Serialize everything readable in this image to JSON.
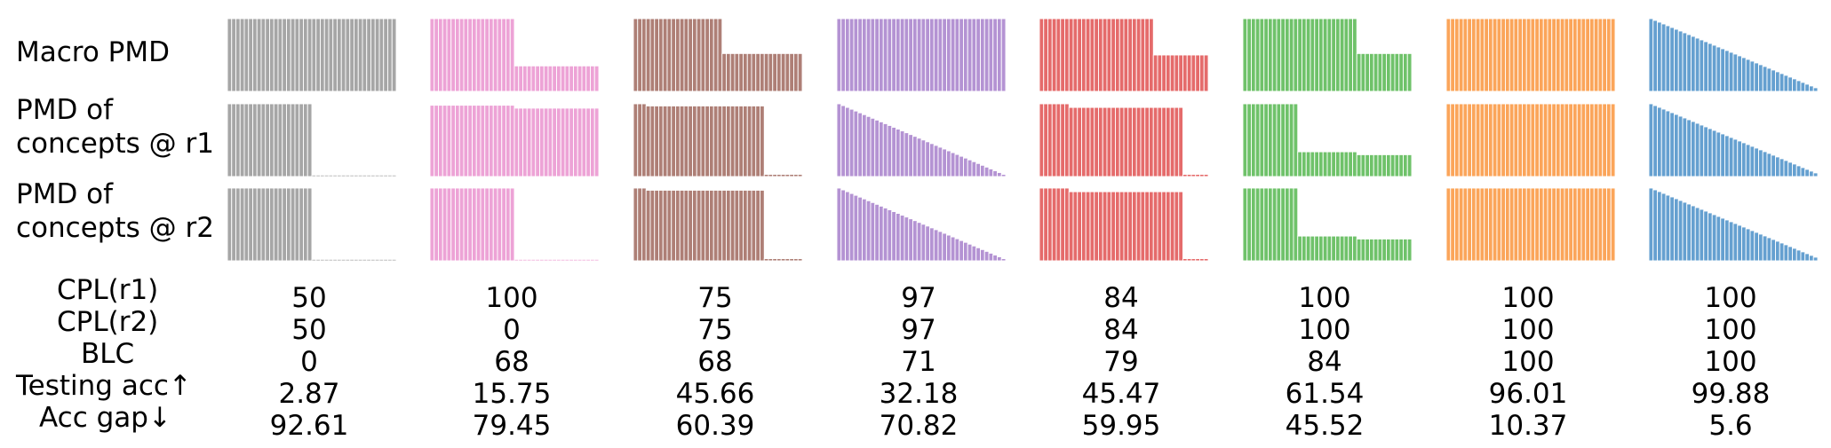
{
  "row_labels": {
    "macro": "Macro PMD",
    "r1": "PMD of\nconcepts @ r1",
    "r2": "PMD of\nconcepts @ r2"
  },
  "metric_labels": [
    "CPL(r1)",
    "CPL(r2)",
    "BLC",
    "Testing acc↑",
    "Acc gap↓"
  ],
  "chart_data": {
    "type": "bar",
    "bars_per_panel": 40,
    "rows": [
      "Macro PMD",
      "PMD of concepts @ r1",
      "PMD of concepts @ r2"
    ],
    "columns": [
      {
        "color": "#a6a6a6",
        "macro": {
          "shape": "flat",
          "level": 1.0
        },
        "r1": {
          "shape": "step",
          "k": 20,
          "high": 1.0,
          "low": 0.02
        },
        "r2": {
          "shape": "step",
          "k": 20,
          "high": 1.0,
          "low": 0.02
        },
        "metrics": [
          "50",
          "50",
          "0",
          "2.87",
          "92.61"
        ]
      },
      {
        "color": "#eda3d6",
        "macro": {
          "shape": "step",
          "k": 20,
          "high": 1.0,
          "low": 0.35
        },
        "r1": {
          "shape": "step",
          "k": 20,
          "high": 0.98,
          "low": 0.94
        },
        "r2": {
          "shape": "step",
          "k": 20,
          "high": 1.0,
          "low": 0.02
        },
        "metrics": [
          "100",
          "0",
          "68",
          "15.75",
          "79.45"
        ]
      },
      {
        "color": "#ae7f76",
        "macro": {
          "shape": "step",
          "k": 21,
          "high": 1.0,
          "low": 0.52
        },
        "r1": {
          "shape": "step",
          "k": 31,
          "high": 0.97,
          "low": 0.03,
          "first": 3,
          "first_high": 1.0
        },
        "r2": {
          "shape": "step",
          "k": 31,
          "high": 0.97,
          "low": 0.03,
          "first": 3,
          "first_high": 1.0
        },
        "metrics": [
          "75",
          "75",
          "68",
          "45.66",
          "60.39"
        ]
      },
      {
        "color": "#b493d3",
        "macro": {
          "shape": "flat",
          "level": 1.0
        },
        "r1": {
          "shape": "linear",
          "start": 1.0,
          "end": 0.03
        },
        "r2": {
          "shape": "linear",
          "start": 1.0,
          "end": 0.03
        },
        "metrics": [
          "97",
          "97",
          "71",
          "32.18",
          "70.82"
        ]
      },
      {
        "color": "#e56b6b",
        "macro": {
          "shape": "step",
          "k": 27,
          "high": 1.0,
          "low": 0.5
        },
        "r1": {
          "shape": "step",
          "k": 34,
          "high": 0.95,
          "low": 0.03,
          "first": 7,
          "first_high": 1.0
        },
        "r2": {
          "shape": "step",
          "k": 34,
          "high": 0.95,
          "low": 0.03,
          "first": 7,
          "first_high": 1.0
        },
        "metrics": [
          "84",
          "84",
          "79",
          "45.47",
          "59.95"
        ]
      },
      {
        "color": "#6fc26a",
        "macro": {
          "shape": "step",
          "k": 27,
          "high": 1.0,
          "low": 0.52
        },
        "r1": {
          "shape": "steps",
          "levels": [
            [
              13,
              1.0
            ],
            [
              14,
              0.34
            ],
            [
              13,
              0.3
            ]
          ]
        },
        "r2": {
          "shape": "steps",
          "levels": [
            [
              13,
              1.0
            ],
            [
              14,
              0.34
            ],
            [
              13,
              0.3
            ]
          ]
        },
        "metrics": [
          "100",
          "100",
          "84",
          "61.54",
          "45.52"
        ]
      },
      {
        "color": "#fba55a",
        "macro": {
          "shape": "flat",
          "level": 1.0
        },
        "r1": {
          "shape": "flat",
          "level": 1.0
        },
        "r2": {
          "shape": "flat",
          "level": 1.0
        },
        "metrics": [
          "100",
          "100",
          "100",
          "96.01",
          "10.37"
        ]
      },
      {
        "color": "#65a0d0",
        "macro": {
          "shape": "linear",
          "start": 1.0,
          "end": 0.05
        },
        "r1": {
          "shape": "linear",
          "start": 1.0,
          "end": 0.05
        },
        "r2": {
          "shape": "linear",
          "start": 1.0,
          "end": 0.05
        },
        "metrics": [
          "100",
          "100",
          "100",
          "99.88",
          "5.6"
        ]
      }
    ]
  }
}
